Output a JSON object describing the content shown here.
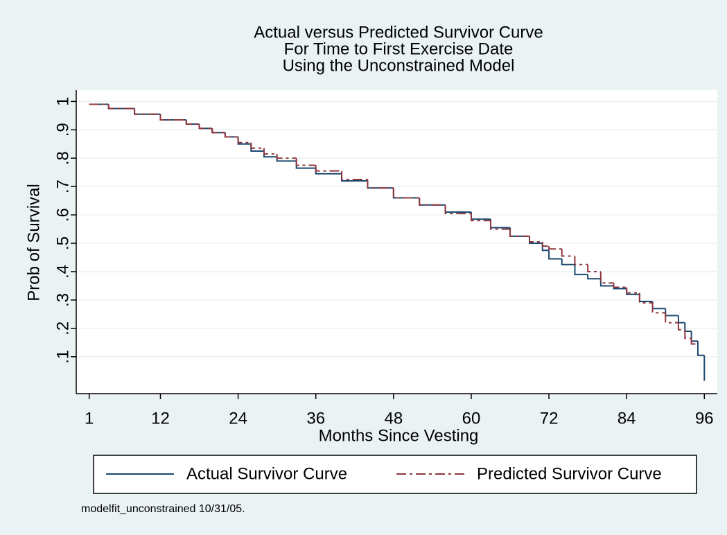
{
  "chart_data": {
    "type": "step",
    "title": [
      "Actual versus Predicted Survivor Curve",
      "For  Time to First Exercise Date",
      "Using the Unconstrained Model"
    ],
    "xlabel": "Months Since Vesting",
    "ylabel": "Prob of Survival",
    "note": "modelfit_unconstrained 10/31/05.",
    "x": [
      1,
      4,
      8,
      12,
      16,
      18,
      20,
      22,
      24,
      26,
      28,
      30,
      33,
      36,
      40,
      44,
      48,
      52,
      56,
      60,
      63,
      66,
      69,
      71,
      72,
      74,
      76,
      78,
      80,
      82,
      84,
      86,
      88,
      90,
      92,
      93,
      94,
      95,
      96
    ],
    "series": [
      {
        "name": "Actual Survivor Curve",
        "color": "#1a476f",
        "dash": false,
        "values": [
          0.99,
          0.975,
          0.955,
          0.935,
          0.92,
          0.905,
          0.89,
          0.875,
          0.85,
          0.825,
          0.805,
          0.79,
          0.765,
          0.745,
          0.72,
          0.695,
          0.66,
          0.635,
          0.61,
          0.585,
          0.555,
          0.525,
          0.5,
          0.475,
          0.445,
          0.425,
          0.39,
          0.375,
          0.35,
          0.34,
          0.32,
          0.295,
          0.27,
          0.245,
          0.22,
          0.19,
          0.155,
          0.105,
          0.015
        ]
      },
      {
        "name": "Predicted Survivor Curve",
        "color": "#90353b",
        "dash": true,
        "values": [
          0.99,
          0.975,
          0.955,
          0.935,
          0.92,
          0.905,
          0.89,
          0.875,
          0.855,
          0.835,
          0.815,
          0.8,
          0.775,
          0.755,
          0.725,
          0.695,
          0.66,
          0.635,
          0.605,
          0.58,
          0.55,
          0.525,
          0.505,
          0.49,
          0.48,
          0.455,
          0.425,
          0.4,
          0.36,
          0.345,
          0.325,
          0.29,
          0.255,
          0.22,
          0.195,
          0.165,
          0.145,
          0.145,
          null
        ]
      }
    ],
    "xlim": [
      -1,
      98
    ],
    "ylim": [
      -0.03,
      1.04
    ],
    "xticks": [
      1,
      12,
      24,
      36,
      48,
      60,
      72,
      84,
      96
    ],
    "yticks": [
      {
        "value": 0.1,
        "label": ".1"
      },
      {
        "value": 0.2,
        "label": ".2"
      },
      {
        "value": 0.3,
        "label": ".3"
      },
      {
        "value": 0.4,
        "label": ".4"
      },
      {
        "value": 0.5,
        "label": ".5"
      },
      {
        "value": 0.6,
        "label": ".6"
      },
      {
        "value": 0.7,
        "label": ".7"
      },
      {
        "value": 0.8,
        "label": ".8"
      },
      {
        "value": 0.9,
        "label": ".9"
      },
      {
        "value": 1,
        "label": "1"
      }
    ],
    "grid": true,
    "legend": "bottom"
  }
}
